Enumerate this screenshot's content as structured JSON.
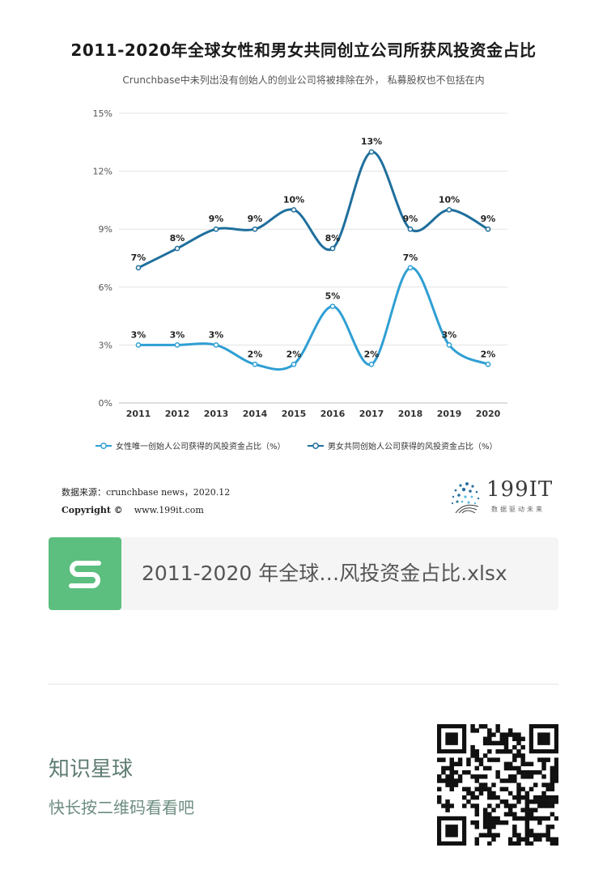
{
  "chart_data": {
    "type": "line",
    "title": "2011-2020年全球女性和男女共同创立公司所获风投资金占比",
    "subtitle": "Crunchbase中未列出没有创始人的创业公司将被排除在外， 私募股权也不包括在内",
    "categories": [
      "2011",
      "2012",
      "2013",
      "2014",
      "2015",
      "2016",
      "2017",
      "2018",
      "2019",
      "2020"
    ],
    "series": [
      {
        "name": "女性唯一创始人公司获得的风投资金占比（%）",
        "values": [
          3,
          3,
          3,
          2,
          2,
          5,
          2,
          7,
          3,
          2
        ],
        "labels": [
          "3%",
          "3%",
          "3%",
          "2%",
          "2%",
          "5%",
          "2%",
          "7%",
          "3%",
          "2%"
        ],
        "color": "#2f9fd3"
      },
      {
        "name": "男女共同创始人公司获得的风投资金占比（%）",
        "values": [
          7,
          8,
          9,
          9,
          10,
          8,
          13,
          9,
          10,
          9
        ],
        "labels": [
          "7%",
          "8%",
          "9%",
          "9%",
          "10%",
          "8%",
          "13%",
          "9%",
          "10%",
          "9%"
        ],
        "color": "#1f6f9d"
      }
    ],
    "yticks": [
      "0%",
      "3%",
      "6%",
      "9%",
      "12%",
      "15%"
    ],
    "ylim": [
      0,
      15
    ],
    "grid": true,
    "legend_position": "bottom"
  },
  "source": {
    "label": "数据来源：",
    "text": "crunchbase news，2020.12",
    "copyright_label": "Copyright ©",
    "copyright_url": "www.199it.com"
  },
  "logo": {
    "text": "199IT",
    "tagline": "数据驱动未来"
  },
  "file_card": {
    "icon": "spreadsheet-s-icon",
    "name": "2011-2020 年全球…风投资金占比.xlsx",
    "color": "#5cbf7f"
  },
  "footer": {
    "title": "知识星球",
    "subtitle": "快长按二维码看看吧"
  }
}
